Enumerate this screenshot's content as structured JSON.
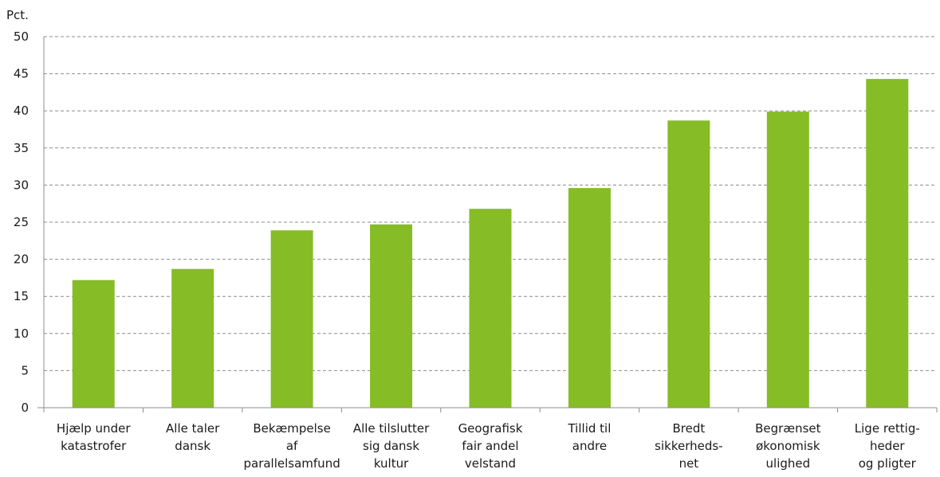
{
  "chart_data": {
    "type": "bar",
    "ylabel": "Pct.",
    "ylim": [
      0,
      50
    ],
    "ytick_step": 5,
    "yticks": [
      "0",
      "5",
      "10",
      "15",
      "20",
      "25",
      "30",
      "35",
      "40",
      "45",
      "50"
    ],
    "grid": true,
    "bar_color": "#86bc25",
    "categories": [
      [
        "Hjælp under",
        "katastrofer"
      ],
      [
        "Alle taler",
        "dansk"
      ],
      [
        "Bekæmpelse",
        "af",
        "parallelsamfund"
      ],
      [
        "Alle tilslutter",
        "sig dansk",
        "kultur"
      ],
      [
        "Geografisk",
        "fair andel",
        "velstand"
      ],
      [
        "Tillid til",
        "andre"
      ],
      [
        "Bredt",
        "sikkerheds-",
        "net"
      ],
      [
        "Begrænset",
        "økonomisk",
        "ulighed"
      ],
      [
        "Lige rettig-",
        "heder",
        "og pligter"
      ]
    ],
    "values": [
      17.2,
      18.7,
      23.9,
      24.7,
      26.8,
      29.6,
      38.7,
      39.9,
      44.3
    ]
  }
}
